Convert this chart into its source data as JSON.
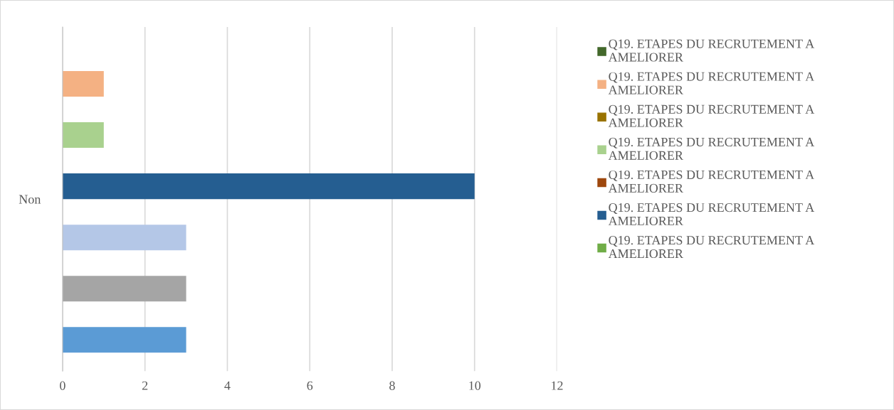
{
  "chart_data": {
    "type": "bar",
    "orientation": "horizontal",
    "categories": [
      "Non"
    ],
    "xlim": [
      0,
      12
    ],
    "xticks": [
      0,
      2,
      4,
      6,
      8,
      10,
      12
    ],
    "grid": "x",
    "legend": "right",
    "series": [
      {
        "name": "Q19. ETAPES DU RECRUTEMENT A AMELIORER",
        "color": "#43682b",
        "values": [
          0
        ]
      },
      {
        "name": "Q19. ETAPES DU RECRUTEMENT A AMELIORER",
        "color": "#f4b183",
        "values": [
          1
        ]
      },
      {
        "name": "Q19. ETAPES DU RECRUTEMENT A AMELIORER",
        "color": "#997300",
        "values": [
          0
        ]
      },
      {
        "name": "Q19. ETAPES DU RECRUTEMENT A AMELIORER",
        "color": "#a9d18e",
        "values": [
          1
        ]
      },
      {
        "name": "Q19. ETAPES DU RECRUTEMENT A AMELIORER",
        "color": "#9e480e",
        "values": [
          0
        ]
      },
      {
        "name": "Q19. ETAPES DU RECRUTEMENT A AMELIORER",
        "color": "#255e91",
        "values": [
          10
        ]
      },
      {
        "name": "Q19. ETAPES DU RECRUTEMENT A AMELIORER",
        "color": "#70ad47",
        "values": [
          0
        ]
      },
      {
        "color": "#b4c7e7",
        "values": [
          3
        ]
      },
      {
        "color": "#ffc000",
        "values": [
          0
        ]
      },
      {
        "color": "#a5a5a5",
        "values": [
          3
        ]
      },
      {
        "color": "#ed7d31",
        "values": [
          0
        ]
      },
      {
        "color": "#5b9bd5",
        "values": [
          3
        ]
      }
    ]
  }
}
